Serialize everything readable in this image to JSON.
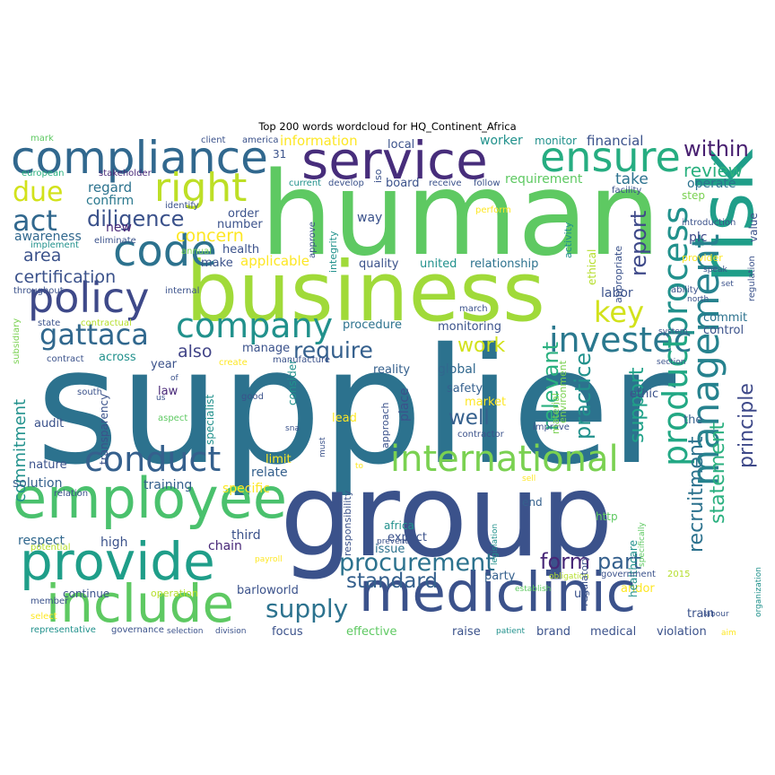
{
  "title": "Top 200 words wordcloud for HQ_Continent_Africa",
  "words": [
    {
      "text": "supplier",
      "color": "#2c728e"
    },
    {
      "text": "group",
      "color": "#3b528b"
    },
    {
      "text": "human",
      "color": "#5ec962"
    },
    {
      "text": "business",
      "color": "#a0da39"
    },
    {
      "text": "service",
      "color": "#472d7b"
    },
    {
      "text": "compliance",
      "color": "#31688e"
    },
    {
      "text": "risk",
      "color": "#1f9e89"
    },
    {
      "text": "include",
      "color": "#5ec962"
    },
    {
      "text": "mediclinic",
      "color": "#3b528b"
    },
    {
      "text": "employee",
      "color": "#4ac16d"
    },
    {
      "text": "provide",
      "color": "#1f9e89"
    },
    {
      "text": "ensure",
      "color": "#26ad81"
    },
    {
      "text": "international",
      "color": "#7ad151"
    },
    {
      "text": "management",
      "color": "#26828e"
    },
    {
      "text": "process",
      "color": "#21918c"
    },
    {
      "text": "policy",
      "color": "#3e4989"
    },
    {
      "text": "code",
      "color": "#2c728e"
    },
    {
      "text": "conduct",
      "color": "#35608d"
    },
    {
      "text": "company",
      "color": "#21918c"
    },
    {
      "text": "right",
      "color": "#bddf26"
    },
    {
      "text": "gattaca",
      "color": "#31688e"
    },
    {
      "text": "investec",
      "color": "#2a788e"
    },
    {
      "text": "product",
      "color": "#22a884"
    },
    {
      "text": "procurement",
      "color": "#2c728e"
    },
    {
      "text": "key",
      "color": "#d2e21b"
    },
    {
      "text": "act",
      "color": "#31688e"
    },
    {
      "text": "due",
      "color": "#d2e21b"
    },
    {
      "text": "diligence",
      "color": "#3b528b"
    },
    {
      "text": "within",
      "color": "#481f70"
    },
    {
      "text": "review",
      "color": "#2ab07f"
    },
    {
      "text": "supply",
      "color": "#2c728e"
    },
    {
      "text": "standard",
      "color": "#35608d"
    },
    {
      "text": "require",
      "color": "#35608d"
    },
    {
      "text": "work",
      "color": "#d2e21b"
    },
    {
      "text": "principle",
      "color": "#3e4989"
    },
    {
      "text": "statement",
      "color": "#2ab07f"
    },
    {
      "text": "recruitment",
      "color": "#2c728e"
    },
    {
      "text": "relevant",
      "color": "#2ab07f"
    },
    {
      "text": "practice",
      "color": "#21918c"
    },
    {
      "text": "form",
      "color": "#482878"
    },
    {
      "text": "part",
      "color": "#35608d"
    },
    {
      "text": "report",
      "color": "#3e4989"
    },
    {
      "text": "support",
      "color": "#1fa188"
    },
    {
      "text": "certification",
      "color": "#3b528b"
    },
    {
      "text": "area",
      "color": "#3b528b"
    },
    {
      "text": "commitment",
      "color": "#21918c"
    },
    {
      "text": "concern",
      "color": "#fde725"
    },
    {
      "text": "also",
      "color": "#414487"
    },
    {
      "text": "well",
      "color": "#35608d"
    },
    {
      "text": "take",
      "color": "#2c728e"
    },
    {
      "text": "applicable",
      "color": "#fde725"
    },
    {
      "text": "information",
      "color": "#fde725"
    },
    {
      "text": "financial",
      "color": "#3b528b"
    },
    {
      "text": "worker",
      "color": "#21918c"
    },
    {
      "text": "requirement",
      "color": "#5ec962"
    },
    {
      "text": "regard",
      "color": "#2c728e"
    },
    {
      "text": "confirm",
      "color": "#2a788e"
    },
    {
      "text": "new",
      "color": "#482878"
    },
    {
      "text": "awareness",
      "color": "#31688e"
    },
    {
      "text": "operate",
      "color": "#2c728e"
    },
    {
      "text": "labor",
      "color": "#3b528b"
    },
    {
      "text": "commit",
      "color": "#2c728e"
    },
    {
      "text": "control",
      "color": "#3b528b"
    },
    {
      "text": "plc",
      "color": "#3e4989"
    },
    {
      "text": "relate",
      "color": "#35608d"
    },
    {
      "text": "solution",
      "color": "#35608d"
    },
    {
      "text": "training",
      "color": "#35608d"
    },
    {
      "text": "specific",
      "color": "#fde725"
    },
    {
      "text": "limit",
      "color": "#fde725"
    },
    {
      "text": "high",
      "color": "#3b528b"
    },
    {
      "text": "respect",
      "color": "#31688e"
    },
    {
      "text": "third",
      "color": "#3b528b"
    },
    {
      "text": "chain",
      "color": "#482878"
    },
    {
      "text": "law",
      "color": "#482878"
    },
    {
      "text": "nature",
      "color": "#3b528b"
    },
    {
      "text": "audit",
      "color": "#3b528b"
    },
    {
      "text": "year",
      "color": "#3b528b"
    },
    {
      "text": "across",
      "color": "#21918c"
    },
    {
      "text": "manage",
      "color": "#3b528b"
    },
    {
      "text": "monitoring",
      "color": "#3b528b"
    },
    {
      "text": "global",
      "color": "#31688e"
    },
    {
      "text": "safety",
      "color": "#35608d"
    },
    {
      "text": "reality",
      "color": "#35608d"
    },
    {
      "text": "market",
      "color": "#fde725"
    },
    {
      "text": "lead",
      "color": "#fde725"
    },
    {
      "text": "place",
      "color": "#3b528b"
    },
    {
      "text": "procedure",
      "color": "#2c728e"
    },
    {
      "text": "quality",
      "color": "#3b528b"
    },
    {
      "text": "united",
      "color": "#21918c"
    },
    {
      "text": "relationship",
      "color": "#2c728e"
    },
    {
      "text": "way",
      "color": "#3b528b"
    },
    {
      "text": "ethic",
      "color": "#3b528b"
    },
    {
      "text": "the",
      "color": "#35608d"
    },
    {
      "text": "expect",
      "color": "#3b528b"
    },
    {
      "text": "issue",
      "color": "#2c728e"
    },
    {
      "text": "prevent",
      "color": "#3b528b"
    },
    {
      "text": "party",
      "color": "#35608d"
    },
    {
      "text": "uk",
      "color": "#3b528b"
    },
    {
      "text": "andor",
      "color": "#fde725"
    },
    {
      "text": "train",
      "color": "#3b528b"
    },
    {
      "text": "brand",
      "color": "#3b528b"
    },
    {
      "text": "medical",
      "color": "#3b528b"
    },
    {
      "text": "violation",
      "color": "#3b528b"
    },
    {
      "text": "raise",
      "color": "#3b528b"
    },
    {
      "text": "effective",
      "color": "#5ec962"
    },
    {
      "text": "focus",
      "color": "#3b528b"
    },
    {
      "text": "barloworld",
      "color": "#3b528b"
    },
    {
      "text": "continue",
      "color": "#3b528b"
    },
    {
      "text": "operation",
      "color": "#b5de2b"
    },
    {
      "text": "end",
      "color": "#35608d"
    },
    {
      "text": "africa",
      "color": "#21918c"
    },
    {
      "text": "http",
      "color": "#5ec962"
    },
    {
      "text": "healthcare",
      "color": "#21918c"
    },
    {
      "text": "health",
      "color": "#3b528b"
    },
    {
      "text": "make",
      "color": "#3b528b"
    },
    {
      "text": "number",
      "color": "#3b528b"
    },
    {
      "text": "order",
      "color": "#3b528b"
    },
    {
      "text": "local",
      "color": "#3b528b"
    },
    {
      "text": "board",
      "color": "#3b528b"
    },
    {
      "text": "monitor",
      "color": "#21918c"
    },
    {
      "text": "mark",
      "color": "#5ec962"
    },
    {
      "text": "client",
      "color": "#3b528b"
    },
    {
      "text": "america",
      "color": "#3b528b"
    },
    {
      "text": "european",
      "color": "#2ab07f"
    },
    {
      "text": "stakeholder",
      "color": "#482878"
    },
    {
      "text": "current",
      "color": "#21918c"
    },
    {
      "text": "develop",
      "color": "#3b528b"
    },
    {
      "text": "receive",
      "color": "#3b528b"
    },
    {
      "text": "follow",
      "color": "#3b528b"
    },
    {
      "text": "identify",
      "color": "#3b528b"
    },
    {
      "text": "facility",
      "color": "#3b528b"
    },
    {
      "text": "step",
      "color": "#7ad151"
    },
    {
      "text": "introduction",
      "color": "#3b528b"
    },
    {
      "text": "regulation",
      "color": "#3b528b"
    },
    {
      "text": "value",
      "color": "#3b528b"
    },
    {
      "text": "provider",
      "color": "#fde725"
    },
    {
      "text": "speak",
      "color": "#3b528b"
    },
    {
      "text": "ability",
      "color": "#3b528b"
    },
    {
      "text": "set",
      "color": "#3b528b"
    },
    {
      "text": "north",
      "color": "#3b528b"
    },
    {
      "text": "system",
      "color": "#3b528b"
    },
    {
      "text": "section",
      "color": "#3b528b"
    },
    {
      "text": "implement",
      "color": "#21918c"
    },
    {
      "text": "eliminate",
      "color": "#3b528b"
    },
    {
      "text": "annual",
      "color": "#7ad151"
    },
    {
      "text": "throughout",
      "color": "#3b528b"
    },
    {
      "text": "internal",
      "color": "#3b528b"
    },
    {
      "text": "subsidiary",
      "color": "#7ad151"
    },
    {
      "text": "state",
      "color": "#3b528b"
    },
    {
      "text": "contractual",
      "color": "#b5de2b"
    },
    {
      "text": "contract",
      "color": "#3b528b"
    },
    {
      "text": "create",
      "color": "#fde725"
    },
    {
      "text": "manufacture",
      "color": "#3b528b"
    },
    {
      "text": "march",
      "color": "#3b528b"
    },
    {
      "text": "south",
      "color": "#3b528b"
    },
    {
      "text": "aspect",
      "color": "#5ec962"
    },
    {
      "text": "good",
      "color": "#3b528b"
    },
    {
      "text": "relation",
      "color": "#3b528b"
    },
    {
      "text": "potential",
      "color": "#b5de2b"
    },
    {
      "text": "payroll",
      "color": "#fde725"
    },
    {
      "text": "member",
      "color": "#3b528b"
    },
    {
      "text": "select",
      "color": "#fde725"
    },
    {
      "text": "representative",
      "color": "#21918c"
    },
    {
      "text": "governance",
      "color": "#3b528b"
    },
    {
      "text": "selection",
      "color": "#3b528b"
    },
    {
      "text": "division",
      "color": "#3b528b"
    },
    {
      "text": "patient",
      "color": "#21918c"
    },
    {
      "text": "aim",
      "color": "#fde725"
    },
    {
      "text": "labour",
      "color": "#3b528b"
    },
    {
      "text": "2015",
      "color": "#b5de2b"
    },
    {
      "text": "government",
      "color": "#3b528b"
    },
    {
      "text": "obligation",
      "color": "#b5de2b"
    },
    {
      "text": "establish",
      "color": "#5ec962"
    },
    {
      "text": "contractor",
      "color": "#3b528b"
    },
    {
      "text": "improve",
      "color": "#3b528b"
    },
    {
      "text": "perform",
      "color": "#fde725"
    },
    {
      "text": "appropriate",
      "color": "#3b528b"
    },
    {
      "text": "activity",
      "color": "#21918c"
    },
    {
      "text": "ethical",
      "color": "#b5de2b"
    },
    {
      "text": "integrity",
      "color": "#21918c"
    },
    {
      "text": "approve",
      "color": "#3b528b"
    },
    {
      "text": "iso",
      "color": "#3b528b"
    },
    {
      "text": "31",
      "color": "#3b528b"
    },
    {
      "text": "consider",
      "color": "#21918c"
    },
    {
      "text": "transparency",
      "color": "#3b528b"
    },
    {
      "text": "specialist",
      "color": "#21918c"
    },
    {
      "text": "responsibility",
      "color": "#3b528b"
    },
    {
      "text": "approach",
      "color": "#3b528b"
    },
    {
      "text": "material",
      "color": "#7ad151"
    },
    {
      "text": "environment",
      "color": "#7ad151"
    },
    {
      "text": "regulatory",
      "color": "#3b528b"
    },
    {
      "text": "legislation",
      "color": "#21918c"
    },
    {
      "text": "specifically",
      "color": "#5ec962"
    },
    {
      "text": "organization",
      "color": "#21918c"
    },
    {
      "text": "sell",
      "color": "#fde725"
    },
    {
      "text": "must",
      "color": "#3b528b"
    },
    {
      "text": "sna",
      "color": "#3b528b"
    },
    {
      "text": "us",
      "color": "#3b528b"
    },
    {
      "text": "of",
      "color": "#3b528b"
    },
    {
      "text": "to",
      "color": "#fde725"
    }
  ]
}
